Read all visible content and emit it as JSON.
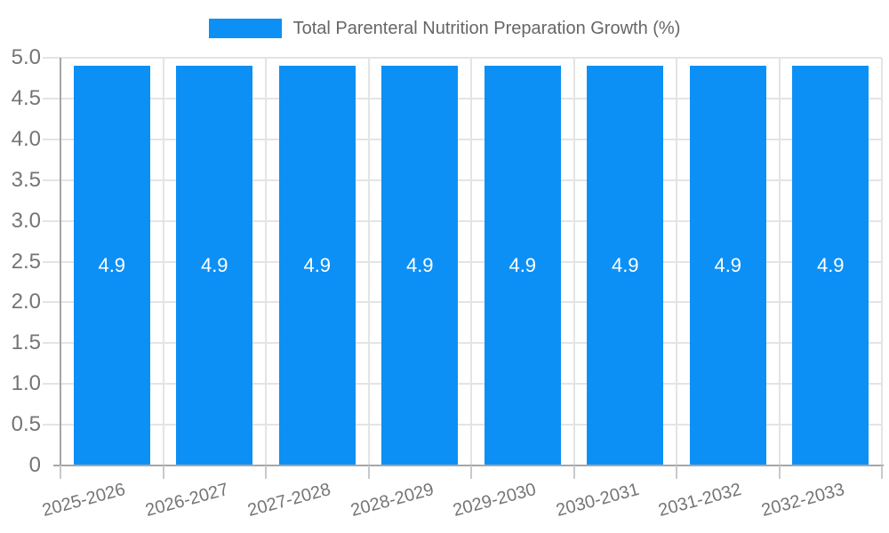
{
  "colors": {
    "background": "#ffffff",
    "bar": "#0d90f5",
    "grid": "#e4e4e4",
    "axis": "#a6a6a6",
    "tick": "#c9c9c9",
    "axis_label": "#757575",
    "legend_text": "#666666",
    "bar_label": "#ffffff"
  },
  "legend": {
    "label": "Total Parenteral Nutrition Preparation Growth (%)"
  },
  "chart_data": {
    "type": "bar",
    "title": "Total Parenteral Nutrition Preparation Growth (%)",
    "categories": [
      "2025-2026",
      "2026-2027",
      "2027-2028",
      "2028-2029",
      "2029-2030",
      "2030-2031",
      "2031-2032",
      "2032-2033"
    ],
    "series": [
      {
        "name": "Total Parenteral Nutrition Preparation Growth (%)",
        "values": [
          4.9,
          4.9,
          4.9,
          4.9,
          4.9,
          4.9,
          4.9,
          4.9
        ]
      }
    ],
    "bar_value_labels": [
      "4.9",
      "4.9",
      "4.9",
      "4.9",
      "4.9",
      "4.9",
      "4.9",
      "4.9"
    ],
    "xlabel": "",
    "ylabel": "",
    "ylim": [
      0,
      5
    ],
    "y_ticks": [
      0,
      0.5,
      1,
      1.5,
      2,
      2.5,
      3,
      3.5,
      4,
      4.5,
      5
    ],
    "y_tick_labels": [
      "0",
      "0.5",
      "1.0",
      "1.5",
      "2.0",
      "2.5",
      "3.0",
      "3.5",
      "4.0",
      "4.5",
      "5.0"
    ],
    "grid": true,
    "legend_position": "top",
    "x_tick_rotation_deg": -15
  }
}
